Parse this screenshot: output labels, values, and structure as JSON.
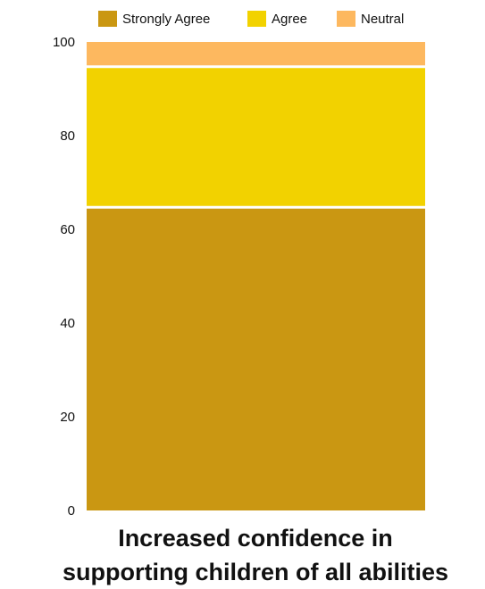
{
  "chart_data": {
    "type": "bar",
    "stacked": true,
    "categories": [
      "Increased confidence in supporting children of all abilities"
    ],
    "title": [
      "Increased confidence in",
      "supporting children of all abilities"
    ],
    "xlabel": "",
    "ylabel": "",
    "ylim": [
      0,
      100
    ],
    "yticks": [
      0,
      20,
      40,
      60,
      80,
      100
    ],
    "grid": false,
    "legend_position": "top",
    "series": [
      {
        "name": "Strongly Agree",
        "values": [
          65
        ],
        "color": "#CA9712"
      },
      {
        "name": "Agree",
        "values": [
          30
        ],
        "color": "#F2D200"
      },
      {
        "name": "Neutral",
        "values": [
          5
        ],
        "color": "#FDB85F"
      }
    ]
  }
}
